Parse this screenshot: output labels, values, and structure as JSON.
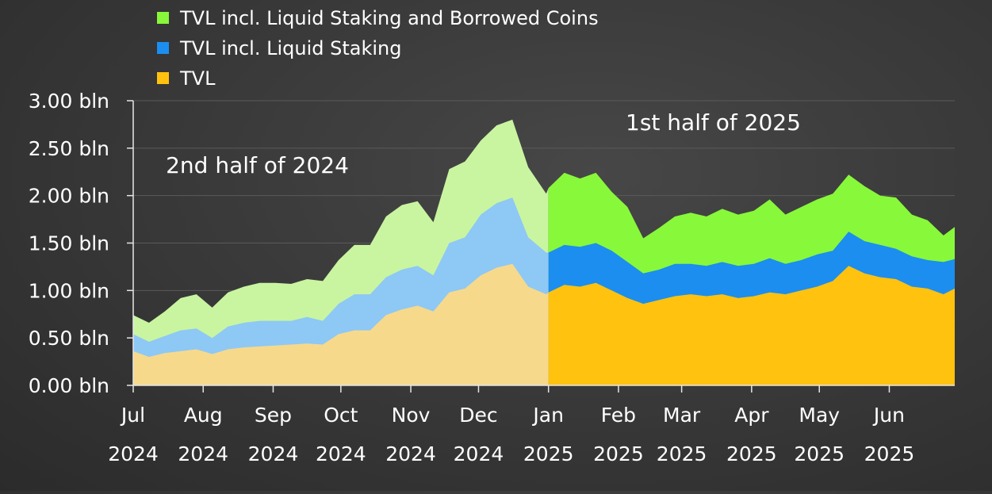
{
  "chart_data": {
    "type": "area",
    "stacked": false,
    "legend_position": "top-left",
    "grid": true,
    "ylim": [
      0,
      3.0
    ],
    "y_ticks": [
      "0.00 bln",
      "0.50 bln",
      "1.00 bln",
      "1.50 bln",
      "2.00 bln",
      "2.50 bln",
      "3.00 bln"
    ],
    "y_tick_values": [
      0,
      0.5,
      1.0,
      1.5,
      2.0,
      2.5,
      3.0
    ],
    "x_tick_months": [
      "Jul",
      "Aug",
      "Sep",
      "Oct",
      "Nov",
      "Dec",
      "Jan",
      "Feb",
      "Mar",
      "Apr",
      "May",
      "Jun"
    ],
    "x_tick_years": [
      "2024",
      "2024",
      "2024",
      "2024",
      "2024",
      "2024",
      "2025",
      "2025",
      "2025",
      "2025",
      "2025",
      "2025"
    ],
    "x_tick_dates": [
      "2024-07-01",
      "2024-08-01",
      "2024-09-01",
      "2024-10-01",
      "2024-11-01",
      "2024-12-01",
      "2025-01-01",
      "2025-02-01",
      "2025-03-01",
      "2025-04-01",
      "2025-05-01",
      "2025-06-01"
    ],
    "x_range": [
      "2024-07-01",
      "2025-06-30"
    ],
    "split_date": "2025-01-01",
    "period_labels": [
      {
        "text": "2nd half of 2024",
        "date": "2024-08-25",
        "y": 2.24
      },
      {
        "text": "1st half of 2025",
        "date": "2025-03-15",
        "y": 2.69
      }
    ],
    "x": [
      "2024-07-01",
      "2024-07-08",
      "2024-07-15",
      "2024-07-22",
      "2024-07-29",
      "2024-08-05",
      "2024-08-12",
      "2024-08-19",
      "2024-08-26",
      "2024-09-02",
      "2024-09-09",
      "2024-09-16",
      "2024-09-23",
      "2024-09-30",
      "2024-10-07",
      "2024-10-14",
      "2024-10-21",
      "2024-10-28",
      "2024-11-04",
      "2024-11-11",
      "2024-11-18",
      "2024-11-25",
      "2024-12-02",
      "2024-12-09",
      "2024-12-16",
      "2024-12-23",
      "2024-12-31",
      "2025-01-01",
      "2025-01-08",
      "2025-01-15",
      "2025-01-22",
      "2025-01-29",
      "2025-02-05",
      "2025-02-12",
      "2025-02-19",
      "2025-02-26",
      "2025-03-05",
      "2025-03-12",
      "2025-03-19",
      "2025-03-26",
      "2025-04-02",
      "2025-04-09",
      "2025-04-16",
      "2025-04-23",
      "2025-04-30",
      "2025-05-07",
      "2025-05-14",
      "2025-05-21",
      "2025-05-28",
      "2025-06-04",
      "2025-06-11",
      "2025-06-18",
      "2025-06-25",
      "2025-06-30"
    ],
    "series": [
      {
        "name": "TVL incl. Liquid Staking and Borrowed Coins",
        "color_h1": "#c9f5a0",
        "color_h2": "#88f83a",
        "values": [
          0.74,
          0.66,
          0.78,
          0.92,
          0.96,
          0.82,
          0.98,
          1.04,
          1.08,
          1.08,
          1.07,
          1.12,
          1.1,
          1.32,
          1.48,
          1.48,
          1.78,
          1.9,
          1.94,
          1.72,
          2.28,
          2.36,
          2.58,
          2.74,
          2.8,
          2.3,
          2.02,
          2.08,
          2.24,
          2.18,
          2.24,
          2.04,
          1.88,
          1.55,
          1.66,
          1.78,
          1.82,
          1.78,
          1.86,
          1.8,
          1.84,
          1.96,
          1.8,
          1.88,
          1.96,
          2.02,
          2.22,
          2.1,
          2.0,
          1.98,
          1.8,
          1.74,
          1.58,
          1.67
        ]
      },
      {
        "name": "TVL incl. Liquid Staking",
        "color_h1": "#8ec8f5",
        "color_h2": "#1b8ef0",
        "values": [
          0.54,
          0.46,
          0.52,
          0.58,
          0.6,
          0.5,
          0.62,
          0.66,
          0.68,
          0.68,
          0.68,
          0.72,
          0.68,
          0.86,
          0.96,
          0.96,
          1.14,
          1.22,
          1.26,
          1.16,
          1.5,
          1.56,
          1.8,
          1.92,
          1.98,
          1.56,
          1.4,
          1.4,
          1.48,
          1.46,
          1.5,
          1.42,
          1.3,
          1.18,
          1.22,
          1.28,
          1.28,
          1.26,
          1.3,
          1.26,
          1.28,
          1.34,
          1.28,
          1.32,
          1.38,
          1.42,
          1.62,
          1.52,
          1.48,
          1.44,
          1.36,
          1.32,
          1.3,
          1.33
        ]
      },
      {
        "name": "TVL",
        "color_h1": "#f7d98c",
        "color_h2": "#ffc20f",
        "values": [
          0.36,
          0.3,
          0.34,
          0.36,
          0.38,
          0.33,
          0.38,
          0.4,
          0.41,
          0.42,
          0.43,
          0.44,
          0.43,
          0.54,
          0.58,
          0.58,
          0.74,
          0.8,
          0.84,
          0.78,
          0.98,
          1.02,
          1.16,
          1.24,
          1.28,
          1.04,
          0.96,
          0.98,
          1.06,
          1.04,
          1.08,
          1.0,
          0.92,
          0.86,
          0.9,
          0.94,
          0.96,
          0.94,
          0.96,
          0.92,
          0.94,
          0.98,
          0.96,
          1.0,
          1.04,
          1.1,
          1.26,
          1.18,
          1.14,
          1.12,
          1.04,
          1.02,
          0.96,
          1.02
        ]
      }
    ],
    "legend": [
      {
        "label": "TVL incl. Liquid Staking and Borrowed Coins",
        "color": "#88f83a"
      },
      {
        "label": "TVL incl. Liquid Staking",
        "color": "#1b8ef0"
      },
      {
        "label": "TVL",
        "color": "#ffc20f"
      }
    ],
    "colors": {
      "text": "#ffffff",
      "axis": "#e6e6e6",
      "grid": "#5a5a5a"
    }
  }
}
